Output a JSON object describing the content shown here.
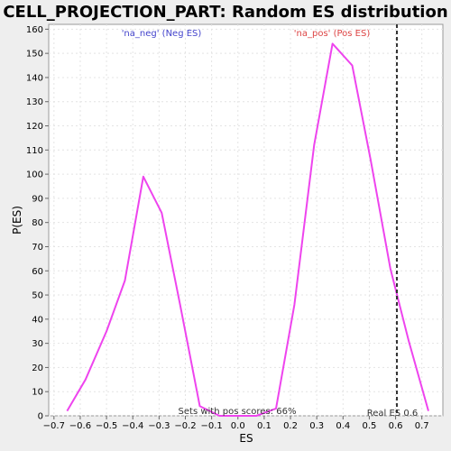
{
  "chart_data": {
    "type": "line",
    "title": "CELL_PROJECTION_PART: Random ES distribution",
    "xlabel": "ES",
    "ylabel": "P(ES)",
    "xlim": [
      -0.72,
      0.78
    ],
    "ylim": [
      0,
      162
    ],
    "xticks": [
      -0.7,
      -0.6,
      -0.5,
      -0.4,
      -0.3,
      -0.2,
      -0.1,
      0.0,
      0.1,
      0.2,
      0.3,
      0.4,
      0.5,
      0.6,
      0.7
    ],
    "xtick_labels": [
      "−0.7",
      "−0.6",
      "−0.5",
      "−0.4",
      "−0.3",
      "−0.2",
      "−0.1",
      "0.0",
      "0.1",
      "0.2",
      "0.3",
      "0.4",
      "0.5",
      "0.6",
      "0.7"
    ],
    "yticks": [
      0,
      10,
      20,
      30,
      40,
      50,
      60,
      70,
      80,
      90,
      100,
      110,
      120,
      130,
      140,
      150,
      160
    ],
    "grid": true,
    "series": [
      {
        "color": "#ee44ee",
        "x": [
          -0.65,
          -0.58,
          -0.5,
          -0.43,
          -0.36,
          -0.29,
          -0.22,
          -0.145,
          -0.07,
          0.0,
          0.07,
          0.145,
          0.215,
          0.29,
          0.36,
          0.435,
          0.505,
          0.58,
          0.65,
          0.725
        ],
        "y": [
          2,
          15,
          35,
          56,
          99,
          84,
          46,
          4,
          0,
          0,
          0,
          3,
          46,
          112,
          154,
          145,
          106,
          61,
          31,
          2
        ]
      }
    ],
    "vline": {
      "x": 0.605,
      "style": "dashed",
      "color": "#333333"
    },
    "annotations": {
      "neg_label": {
        "text": "'na_neg' (Neg ES)",
        "color": "#4444cc"
      },
      "pos_label": {
        "text": "'na_pos' (Pos ES)",
        "color": "#dd4444"
      },
      "sets_text": {
        "text": "Sets with pos scores: 66%",
        "color": "#333333"
      },
      "real_es": {
        "text": "Real ES 0.6",
        "color": "#333333"
      }
    }
  }
}
